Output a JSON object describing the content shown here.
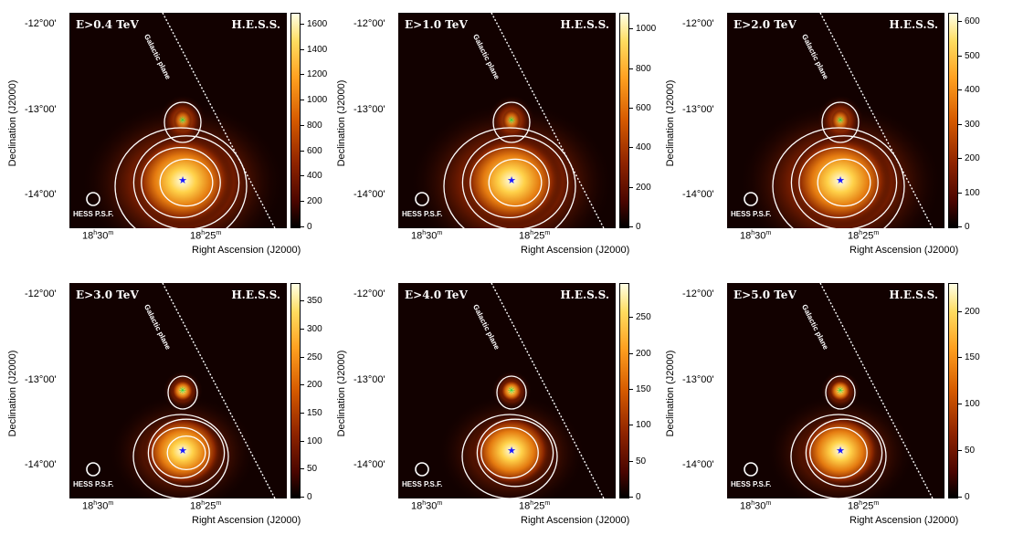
{
  "chart_data": [
    {
      "type": "heatmap",
      "energy_label": "E>0.4 TeV",
      "instrument": "H.E.S.S.",
      "plane_label": "Galactic plane",
      "psf_label": "HESS P.S.F.",
      "xlabel": "Right Ascension (J2000)",
      "ylabel": "Declination (J2000)",
      "xticks": [
        {
          "h": "18",
          "m": "30"
        },
        {
          "h": "18",
          "m": "25"
        }
      ],
      "yticks": [
        "-12°00'",
        "-13°00'",
        "-14°00'"
      ],
      "colorbar": {
        "ticks": [
          0,
          200,
          400,
          600,
          800,
          1000,
          1200,
          1400,
          1600
        ],
        "max": 1700
      },
      "contour_levels": 4,
      "sources": [
        {
          "name": "main",
          "marker": "blue-star"
        },
        {
          "name": "north",
          "marker": "green-cross"
        }
      ]
    },
    {
      "type": "heatmap",
      "energy_label": "E>1.0 TeV",
      "instrument": "H.E.S.S.",
      "plane_label": "Galactic plane",
      "psf_label": "HESS P.S.F.",
      "xlabel": "Right Ascension (J2000)",
      "ylabel": "Declination (J2000)",
      "xticks": [
        {
          "h": "18",
          "m": "30"
        },
        {
          "h": "18",
          "m": "25"
        }
      ],
      "yticks": [
        "-12°00'",
        "-13°00'",
        "-14°00'"
      ],
      "colorbar": {
        "ticks": [
          0,
          200,
          400,
          600,
          800,
          1000
        ],
        "max": 1090
      },
      "contour_levels": 4,
      "sources": [
        {
          "name": "main",
          "marker": "blue-star"
        },
        {
          "name": "north",
          "marker": "green-cross"
        }
      ]
    },
    {
      "type": "heatmap",
      "energy_label": "E>2.0 TeV",
      "instrument": "H.E.S.S.",
      "plane_label": "Galactic plane",
      "psf_label": "HESS P.S.F.",
      "xlabel": "Right Ascension (J2000)",
      "ylabel": "Declination (J2000)",
      "xticks": [
        {
          "h": "18",
          "m": "30"
        },
        {
          "h": "18",
          "m": "25"
        }
      ],
      "yticks": [
        "-12°00'",
        "-13°00'",
        "-14°00'"
      ],
      "colorbar": {
        "ticks": [
          0,
          100,
          200,
          300,
          400,
          500,
          600
        ],
        "max": 630
      },
      "contour_levels": 4,
      "sources": [
        {
          "name": "main",
          "marker": "blue-star"
        },
        {
          "name": "north",
          "marker": "green-cross"
        }
      ]
    },
    {
      "type": "heatmap",
      "energy_label": "E>3.0 TeV",
      "instrument": "H.E.S.S.",
      "plane_label": "Galactic plane",
      "psf_label": "HESS P.S.F.",
      "xlabel": "Right Ascension (J2000)",
      "ylabel": "Declination (J2000)",
      "xticks": [
        {
          "h": "18",
          "m": "30"
        },
        {
          "h": "18",
          "m": "25"
        }
      ],
      "yticks": [
        "-12°00'",
        "-13°00'",
        "-14°00'"
      ],
      "colorbar": {
        "ticks": [
          0,
          50,
          100,
          150,
          200,
          250,
          300,
          350
        ],
        "max": 385
      },
      "contour_levels": 4,
      "sources": [
        {
          "name": "main",
          "marker": "blue-star"
        },
        {
          "name": "north",
          "marker": "green-cross"
        }
      ]
    },
    {
      "type": "heatmap",
      "energy_label": "E>4.0 TeV",
      "instrument": "H.E.S.S.",
      "plane_label": "Galactic plane",
      "psf_label": "HESS P.S.F.",
      "xlabel": "Right Ascension (J2000)",
      "ylabel": "Declination (J2000)",
      "xticks": [
        {
          "h": "18",
          "m": "30"
        },
        {
          "h": "18",
          "m": "25"
        }
      ],
      "yticks": [
        "-12°00'",
        "-13°00'",
        "-14°00'"
      ],
      "colorbar": {
        "ticks": [
          0,
          50,
          100,
          150,
          200,
          250
        ],
        "max": 300
      },
      "contour_levels": 3,
      "sources": [
        {
          "name": "main",
          "marker": "blue-star"
        },
        {
          "name": "north",
          "marker": "green-cross"
        }
      ]
    },
    {
      "type": "heatmap",
      "energy_label": "E>5.0 TeV",
      "instrument": "H.E.S.S.",
      "plane_label": "Galactic plane",
      "psf_label": "HESS P.S.F.",
      "xlabel": "Right Ascension (J2000)",
      "ylabel": "Declination (J2000)",
      "xticks": [
        {
          "h": "18",
          "m": "30"
        },
        {
          "h": "18",
          "m": "25"
        }
      ],
      "yticks": [
        "-12°00'",
        "-13°00'",
        "-14°00'"
      ],
      "colorbar": {
        "ticks": [
          0,
          50,
          100,
          150,
          200
        ],
        "max": 232
      },
      "contour_levels": 3,
      "sources": [
        {
          "name": "main",
          "marker": "blue-star"
        },
        {
          "name": "north",
          "marker": "green-cross"
        }
      ]
    }
  ]
}
